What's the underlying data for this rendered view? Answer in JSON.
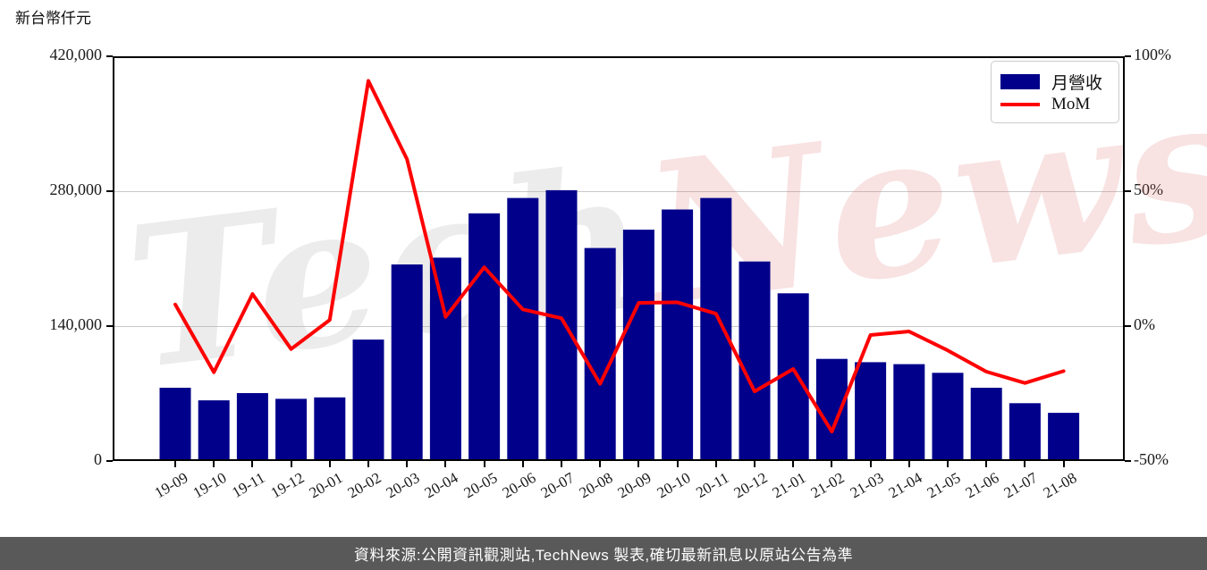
{
  "chart_title_unit": "新台幣仟元",
  "watermark": {
    "part1": "Tech",
    "part2": "News"
  },
  "legend": {
    "items": [
      {
        "label": "月營收",
        "type": "bar"
      },
      {
        "label": "MoM",
        "type": "line"
      }
    ]
  },
  "footer": {
    "text": "資料來源:公開資訊觀測站,TechNews 製表,確切最新訊息以原站公告為準"
  },
  "colors": {
    "bar": "#00008B",
    "line": "#FF0000",
    "grid": "#c8c8c8",
    "axis": "#000000",
    "footer_bg": "#595959",
    "footer_text": "#ffffff",
    "watermark_gray": "rgba(170,170,170,0.22)",
    "watermark_pink": "rgba(222,110,110,0.20)"
  },
  "chart_data": {
    "type": "bar",
    "title": "新台幣仟元",
    "categories": [
      "19-09",
      "19-10",
      "19-11",
      "19-12",
      "20-01",
      "20-02",
      "20-03",
      "20-04",
      "20-05",
      "20-06",
      "20-07",
      "20-08",
      "20-09",
      "20-10",
      "20-11",
      "20-12",
      "21-01",
      "21-02",
      "21-03",
      "21-04",
      "21-05",
      "21-06",
      "21-07",
      "21-08"
    ],
    "series": [
      {
        "name": "月營收",
        "type": "bar",
        "axis": "left",
        "values": [
          76000,
          63000,
          70500,
          64500,
          66000,
          126000,
          204000,
          211000,
          257000,
          273000,
          281000,
          221000,
          240000,
          261000,
          273000,
          207000,
          174000,
          106000,
          102500,
          100500,
          91500,
          76000,
          60000,
          50000
        ]
      },
      {
        "name": "MoM",
        "type": "line",
        "axis": "right",
        "unit": "%",
        "values": [
          8.0,
          -17.1,
          11.9,
          -8.5,
          2.3,
          90.9,
          61.9,
          3.4,
          21.8,
          6.2,
          2.9,
          -21.4,
          8.6,
          8.8,
          4.6,
          -24.2,
          -15.9,
          -39.1,
          -3.3,
          -2.0,
          -9.0,
          -16.9,
          -21.1,
          -16.7
        ]
      }
    ],
    "left_axis": {
      "range": [
        0,
        420000
      ],
      "ticks": [
        0,
        140000,
        280000,
        420000
      ],
      "tick_labels": [
        "0",
        "140,000",
        "280,000",
        "420,000"
      ]
    },
    "right_axis": {
      "range": [
        -50,
        100
      ],
      "ticks": [
        -50,
        0,
        50,
        100
      ],
      "tick_labels": [
        "-50%",
        "0%",
        "50%",
        "100%"
      ]
    },
    "grid_values_left": [
      140000,
      280000
    ],
    "grid_on": true,
    "legend_position": "upper right"
  }
}
